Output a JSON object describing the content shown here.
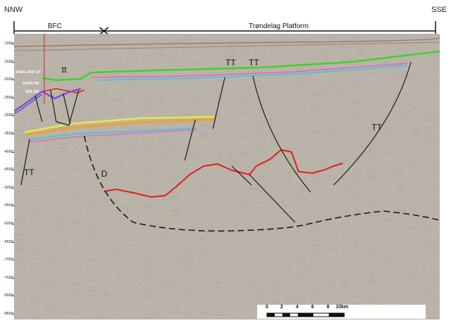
{
  "orientation": {
    "left": "NNW",
    "right": "SSE"
  },
  "regions": {
    "left": "BFC",
    "right": "Trøndelag Platform"
  },
  "depth_axis": [
    "-1000",
    "-1500",
    "-2000",
    "-2500",
    "-3000",
    "-3500",
    "-4000",
    "-4500",
    "-5000",
    "-5500",
    "-6000",
    "-6500",
    "-7000",
    "-7500",
    "-8000",
    "-8500"
  ],
  "annotations": {
    "tt_upper": "tt",
    "tt1": "TT",
    "tt2": "TT",
    "tt3": "TT",
    "tt4": "TT",
    "d": "D"
  },
  "formations": {
    "shetland": "SHETLAND GP",
    "garn": "GARN FM",
    "are": "ÅRE FM"
  },
  "scale": {
    "ticks": [
      "0",
      "2",
      "4",
      "6",
      "8",
      "10km"
    ]
  },
  "colors": {
    "base_seismic": "#b8b2a6",
    "fault": "#1a1a1a",
    "red_horizon": "#e0201c",
    "green": "#3fd12a",
    "yellow": "#e8e84a",
    "orange": "#f0a030",
    "cyan": "#3ac4e8",
    "pink": "#e860c0",
    "purple": "#8a4ad8",
    "blue": "#4060e0"
  }
}
